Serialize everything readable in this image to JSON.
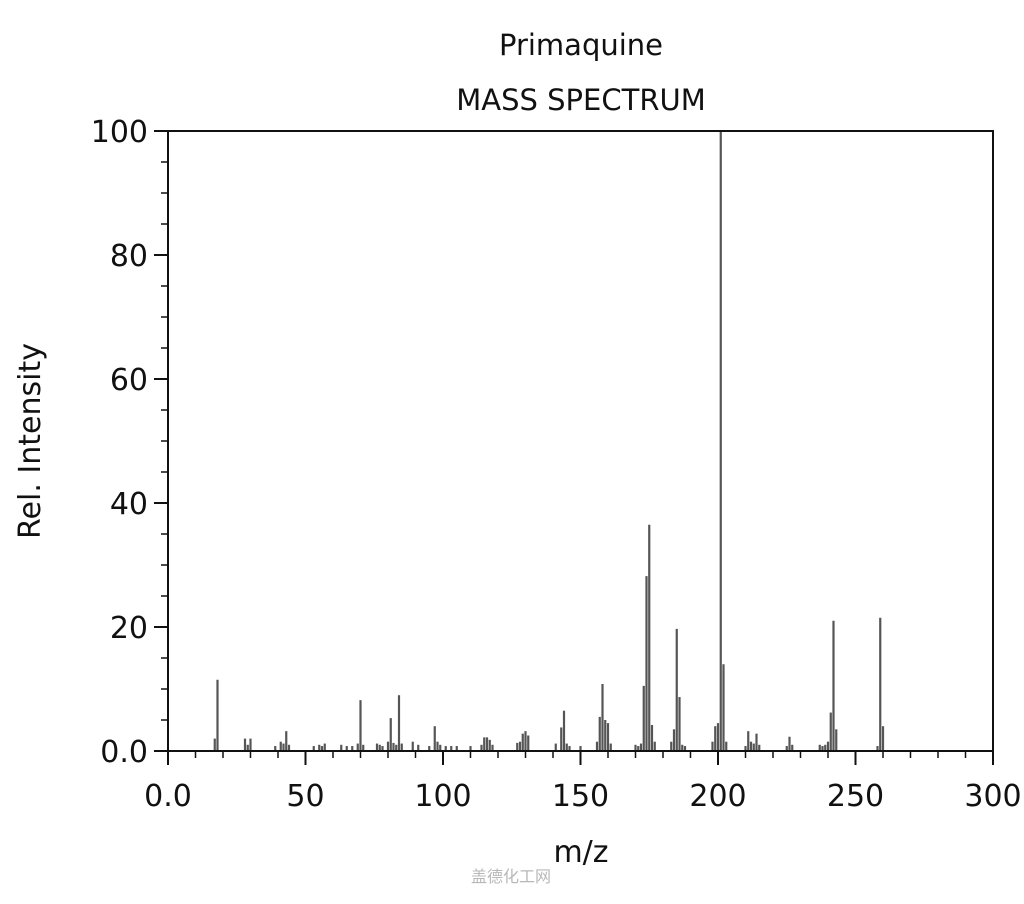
{
  "chart_data": {
    "type": "bar",
    "title": "Primaquine",
    "subtitle": "MASS SPECTRUM",
    "xlabel": "m/z",
    "ylabel": "Rel. Intensity",
    "xlim": [
      0,
      300
    ],
    "ylim": [
      0,
      100
    ],
    "x_ticks": [
      0,
      50,
      100,
      150,
      200,
      250,
      300
    ],
    "x_tick_labels": [
      "0.0",
      "50",
      "100",
      "150",
      "200",
      "250",
      "300"
    ],
    "y_ticks": [
      0,
      20,
      40,
      60,
      80,
      100
    ],
    "y_tick_labels": [
      "0.0",
      "20",
      "40",
      "60",
      "80",
      "100"
    ],
    "grid": false,
    "bar_color": "#555555",
    "series": [
      {
        "mz": [
          17,
          18,
          28,
          29,
          30,
          39,
          41,
          42,
          43,
          44,
          53,
          55,
          56,
          57,
          63,
          65,
          67,
          69,
          70,
          71,
          76,
          77,
          78,
          80,
          81,
          82,
          83,
          84,
          85,
          89,
          91,
          95,
          97,
          98,
          99,
          101,
          103,
          105,
          110,
          114,
          115,
          116,
          117,
          118,
          127,
          128,
          129,
          130,
          131,
          141,
          143,
          144,
          145,
          146,
          150,
          156,
          157,
          158,
          159,
          160,
          161,
          170,
          171,
          172,
          173,
          174,
          175,
          176,
          177,
          183,
          184,
          185,
          186,
          187,
          188,
          198,
          199,
          200,
          201,
          202,
          203,
          210,
          211,
          212,
          213,
          214,
          215,
          225,
          226,
          227,
          237,
          238,
          239,
          240,
          241,
          242,
          243,
          258,
          259,
          260
        ],
        "intensity": [
          2,
          11.5,
          2,
          1,
          2,
          0.8,
          1.5,
          1.2,
          3.2,
          1,
          0.8,
          1,
          0.8,
          1.2,
          1,
          0.8,
          0.8,
          1.2,
          8.2,
          1,
          1.2,
          1,
          0.8,
          1.5,
          5.3,
          1.3,
          1,
          9,
          1.2,
          1.5,
          1,
          0.8,
          4,
          1.5,
          1,
          0.8,
          0.8,
          0.8,
          0.8,
          1,
          2.2,
          2.2,
          1.8,
          1,
          1.3,
          1.5,
          2.8,
          3.2,
          2.5,
          1.2,
          3.8,
          6.5,
          1.2,
          0.8,
          0.8,
          1.5,
          5.5,
          10.8,
          5,
          4.5,
          1.2,
          1,
          0.8,
          1.2,
          10.5,
          28.2,
          36.5,
          4.2,
          1.5,
          1.5,
          3.5,
          19.7,
          8.7,
          1,
          0.8,
          1.5,
          4,
          4.5,
          100,
          14,
          1.5,
          0.8,
          3.2,
          1.5,
          1.2,
          2.8,
          1,
          0.8,
          2.3,
          1,
          1,
          0.8,
          1,
          1.5,
          6.2,
          21,
          3.5,
          0.8,
          21.5,
          4
        ]
      }
    ]
  },
  "watermark": "盖德化工网"
}
